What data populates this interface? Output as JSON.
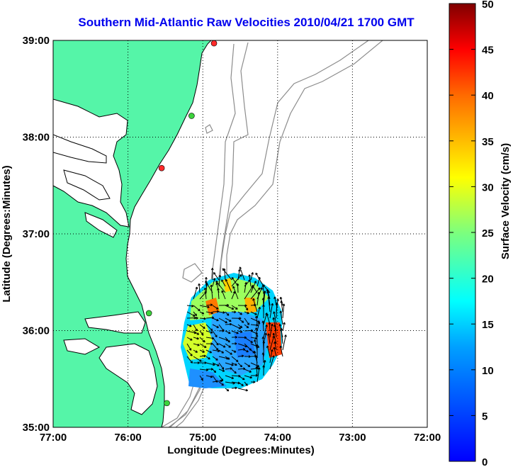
{
  "title": "Southern Mid-Atlantic Raw Velocities 2010/04/21 1700 GMT",
  "x_label": "Longitude (Degrees:Minutes)",
  "y_label": "Latitude (Degrees:Minutes)",
  "x_ticks": [
    {
      "lon": -77,
      "label": "77:00"
    },
    {
      "lon": -76,
      "label": "76:00"
    },
    {
      "lon": -75,
      "label": "75:00"
    },
    {
      "lon": -74,
      "label": "74:00"
    },
    {
      "lon": -73,
      "label": "73:00"
    },
    {
      "lon": -72,
      "label": "72:00"
    }
  ],
  "y_ticks": [
    {
      "lat": 35,
      "label": "35:00"
    },
    {
      "lat": 36,
      "label": "36:00"
    },
    {
      "lat": 37,
      "label": "37:00"
    },
    {
      "lat": 38,
      "label": "38:00"
    },
    {
      "lat": 39,
      "label": "39:00"
    }
  ],
  "colorbar": {
    "label": "Surface Velocity (cm/s)",
    "min": 0,
    "max": 50,
    "ticks": [
      "0",
      "5",
      "10",
      "15",
      "20",
      "25",
      "30",
      "35",
      "40",
      "45",
      "50"
    ],
    "colormap": "jet"
  },
  "extent": {
    "lon_min": -77,
    "lon_max": -72,
    "lat_min": 35,
    "lat_max": 39
  },
  "colors": {
    "land": "#55f5a8",
    "ocean": "#ffffff",
    "coastline": "#000000",
    "bathymetry": "#8c8c8c",
    "title": "#0000ee",
    "grid": "#000000"
  },
  "stations": [
    {
      "lon": -74.85,
      "lat": 38.97,
      "color": "#ff2a2a"
    },
    {
      "lon": -75.15,
      "lat": 38.22,
      "color": "#3cd23c"
    },
    {
      "lon": -75.55,
      "lat": 37.68,
      "color": "#ff2a2a"
    },
    {
      "lon": -75.72,
      "lat": 36.18,
      "color": "#3cd23c"
    },
    {
      "lon": -75.48,
      "lat": 35.25,
      "color": "#3cd23c"
    }
  ]
}
